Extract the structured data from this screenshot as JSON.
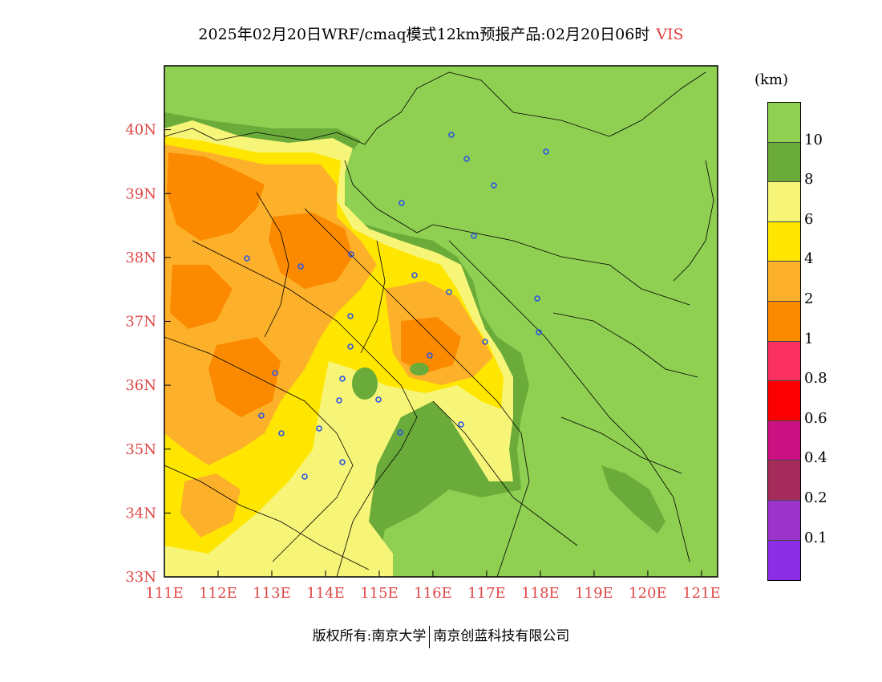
{
  "title": {
    "text": "2025年02月20日WRF/cmaq模式12km预报产品:02月20日06时",
    "variable": "VIS"
  },
  "map": {
    "lon_labels": [
      "111E",
      "112E",
      "113E",
      "114E",
      "115E",
      "116E",
      "117E",
      "118E",
      "119E",
      "120E",
      "121E"
    ],
    "lat_labels": [
      "33N",
      "34N",
      "35N",
      "36N",
      "37N",
      "38N",
      "39N",
      "40N"
    ],
    "lon_range": [
      111,
      121.3
    ],
    "lat_range": [
      33,
      41
    ],
    "colors": {
      "clear": "#8fcf52",
      "dark_green": "#6aab3a",
      "light_yellow": "#f6f578",
      "yellow": "#ffe600",
      "light_orange": "#fdb12b",
      "orange": "#fb8a00",
      "boundary": "#000000",
      "station": "#2c55e6"
    }
  },
  "colorbar": {
    "unit": "(km)",
    "colors": [
      "#8fcf52",
      "#6aab3a",
      "#f6f578",
      "#ffe600",
      "#fdb12b",
      "#fb8a00",
      "#fa3160",
      "#fb0000",
      "#cb1181",
      "#a52c5a",
      "#9c33cb",
      "#8b2de4"
    ],
    "labels": [
      "10",
      "8",
      "6",
      "4",
      "2",
      "1",
      "0.8",
      "0.6",
      "0.4",
      "0.2",
      "0.1"
    ]
  },
  "footer": {
    "left": "版权所有:南京大学",
    "right": "南京创蓝科技有限公司"
  }
}
